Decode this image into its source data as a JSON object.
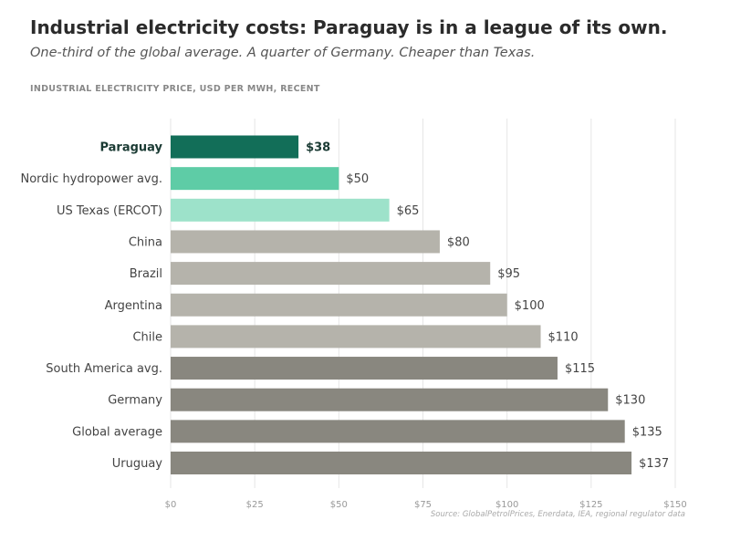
{
  "header": {
    "title": "Industrial electricity costs: Paraguay is in a league of its own.",
    "subtitle": "One-third of the global average. A quarter of Germany. Cheaper than Texas.",
    "axis_caption": "INDUSTRIAL ELECTRICITY PRICE, USD PER MWH, RECENT"
  },
  "source": "Source: GlobalPetrolPrices, Enerdata, IEA, regional regulator data",
  "chart_data": {
    "type": "bar",
    "orientation": "horizontal",
    "title": "Industrial electricity costs: Paraguay is in a league of its own.",
    "subtitle": "One-third of the global average. A quarter of Germany. Cheaper than Texas.",
    "xlabel": "INDUSTRIAL ELECTRICITY PRICE, USD PER MWH, RECENT",
    "ylabel": "",
    "xlim": [
      0,
      150
    ],
    "xticks": [
      0,
      25,
      50,
      75,
      100,
      125,
      150
    ],
    "xtick_labels": [
      "$0",
      "$25",
      "$50",
      "$75",
      "$100",
      "$125",
      "$150"
    ],
    "grid": true,
    "categories": [
      "Paraguay",
      "Nordic hydropower avg.",
      "US Texas (ERCOT)",
      "China",
      "Brazil",
      "Argentina",
      "Chile",
      "South America avg.",
      "Germany",
      "Global average",
      "Uruguay"
    ],
    "values": [
      38,
      50,
      65,
      80,
      95,
      100,
      110,
      115,
      130,
      135,
      137
    ],
    "value_labels": [
      "$38",
      "$50",
      "$65",
      "$80",
      "$95",
      "$100",
      "$110",
      "$115",
      "$130",
      "$135",
      "$137"
    ],
    "colors": [
      "#126e58",
      "#5ecca6",
      "#9de2ca",
      "#b5b3ab",
      "#b5b3ab",
      "#b5b3ab",
      "#b5b3ab",
      "#89877f",
      "#89877f",
      "#89877f",
      "#89877f"
    ],
    "highlight": "Paraguay"
  }
}
